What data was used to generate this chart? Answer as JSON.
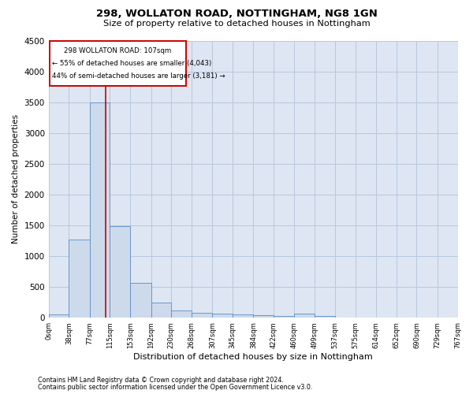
{
  "title1": "298, WOLLATON ROAD, NOTTINGHAM, NG8 1GN",
  "title2": "Size of property relative to detached houses in Nottingham",
  "xlabel": "Distribution of detached houses by size in Nottingham",
  "ylabel": "Number of detached properties",
  "bar_color": "#cddaec",
  "bar_edge_color": "#5b8ec4",
  "grid_color": "#b8c8dc",
  "bg_color": "#dde6f2",
  "annotation_line_color": "#cc0000",
  "annotation_box_color": "#cc0000",
  "annotation_line1": "298 WOLLATON ROAD: 107sqm",
  "annotation_line2": "← 55% of detached houses are smaller (4,043)",
  "annotation_line3": "44% of semi-detached houses are larger (3,181) →",
  "property_value_sqm": 107,
  "bin_edges": [
    0,
    38,
    77,
    115,
    153,
    192,
    230,
    268,
    307,
    345,
    384,
    422,
    460,
    499,
    537,
    575,
    614,
    652,
    690,
    729,
    767
  ],
  "bin_counts": [
    50,
    1270,
    3500,
    1480,
    570,
    240,
    115,
    80,
    60,
    50,
    35,
    30,
    60,
    30,
    0,
    0,
    0,
    0,
    0,
    0
  ],
  "ylim": [
    0,
    4500
  ],
  "yticks": [
    0,
    500,
    1000,
    1500,
    2000,
    2500,
    3000,
    3500,
    4000,
    4500
  ],
  "footnote1": "Contains HM Land Registry data © Crown copyright and database right 2024.",
  "footnote2": "Contains public sector information licensed under the Open Government Licence v3.0."
}
